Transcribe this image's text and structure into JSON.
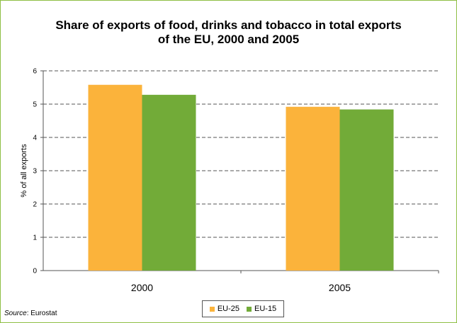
{
  "chart_data": {
    "type": "bar",
    "title_lines": [
      "Share of exports of food, drinks and tobacco in total exports",
      "of the EU, 2000 and 2005"
    ],
    "ylabel": "% of all exports",
    "xlabel": "",
    "ylim": [
      0,
      6
    ],
    "yticks": [
      0,
      1,
      2,
      3,
      4,
      5,
      6
    ],
    "categories": [
      "2000",
      "2005"
    ],
    "series": [
      {
        "name": "EU-25",
        "color": "#fbb33b",
        "values": [
          5.58,
          4.92
        ]
      },
      {
        "name": "EU-15",
        "color": "#72ab38",
        "values": [
          5.28,
          4.84
        ]
      }
    ],
    "grid": true,
    "legend_position": "bottom"
  },
  "source": {
    "label": "Source",
    "text": ": Eurostat"
  }
}
